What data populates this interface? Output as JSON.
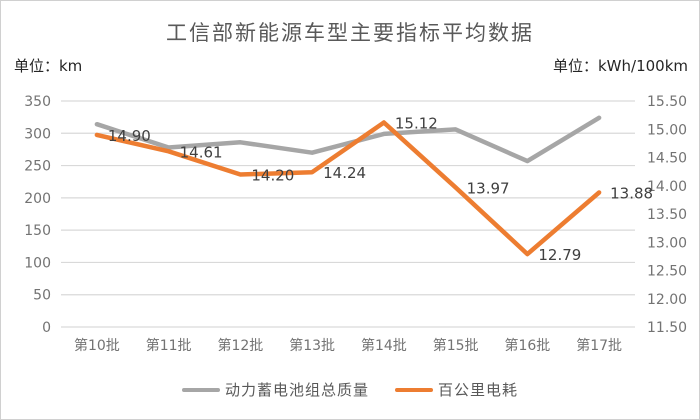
{
  "window": {
    "background": "#ffffff",
    "border_color": "#d0d0d0"
  },
  "header": {
    "title": "工信部新能源车型主要指标平均数据",
    "left_unit_label": "单位：km",
    "right_unit_label": "单位：kWh/100km"
  },
  "legend": {
    "items": [
      {
        "label": "动力蓄电池组总质量",
        "color": "#a6a6a6"
      },
      {
        "label": "百公里电耗",
        "color": "#ed7d31"
      }
    ]
  },
  "colors": {
    "gridline": "#d9d9d9",
    "axis_text": "#737373",
    "data_label_text": "#404040",
    "title_text": "#595959",
    "series_gray": "#a6a6a6",
    "series_orange": "#ed7d31"
  },
  "chart_data": {
    "type": "line",
    "title": "工信部新能源车型主要指标平均数据",
    "categories": [
      "第10批",
      "第11批",
      "第12批",
      "第13批",
      "第14批",
      "第15批",
      "第16批",
      "第17批"
    ],
    "series": [
      {
        "name": "动力蓄电池组总质量",
        "axis": "left",
        "color": "#a6a6a6",
        "values": [
          314,
          278,
          286,
          270,
          299,
          306,
          257,
          324
        ],
        "show_data_labels": false
      },
      {
        "name": "百公里电耗",
        "axis": "right",
        "color": "#ed7d31",
        "values": [
          14.9,
          14.61,
          14.2,
          14.24,
          15.12,
          13.97,
          12.79,
          13.88
        ],
        "show_data_labels": true,
        "data_labels": [
          "14.90",
          "14.61",
          "14.20",
          "14.24",
          "15.12",
          "13.97",
          "12.79",
          "13.88"
        ]
      }
    ],
    "left_axis": {
      "unit": "单位：km",
      "min": 0,
      "max": 350,
      "step": 50,
      "tick_labels_top_to_bottom": [
        "350",
        "300",
        "250",
        "200",
        "150",
        "100",
        "50",
        "0"
      ]
    },
    "right_axis": {
      "unit": "单位：kWh/100km",
      "min": 11.5,
      "max": 15.5,
      "step": 0.5,
      "tick_labels_top_to_bottom": [
        "15.50",
        "15.00",
        "14.50",
        "14.00",
        "13.50",
        "13.00",
        "12.50",
        "12.00",
        "11.50"
      ]
    },
    "grid": true,
    "legend_position": "bottom"
  }
}
